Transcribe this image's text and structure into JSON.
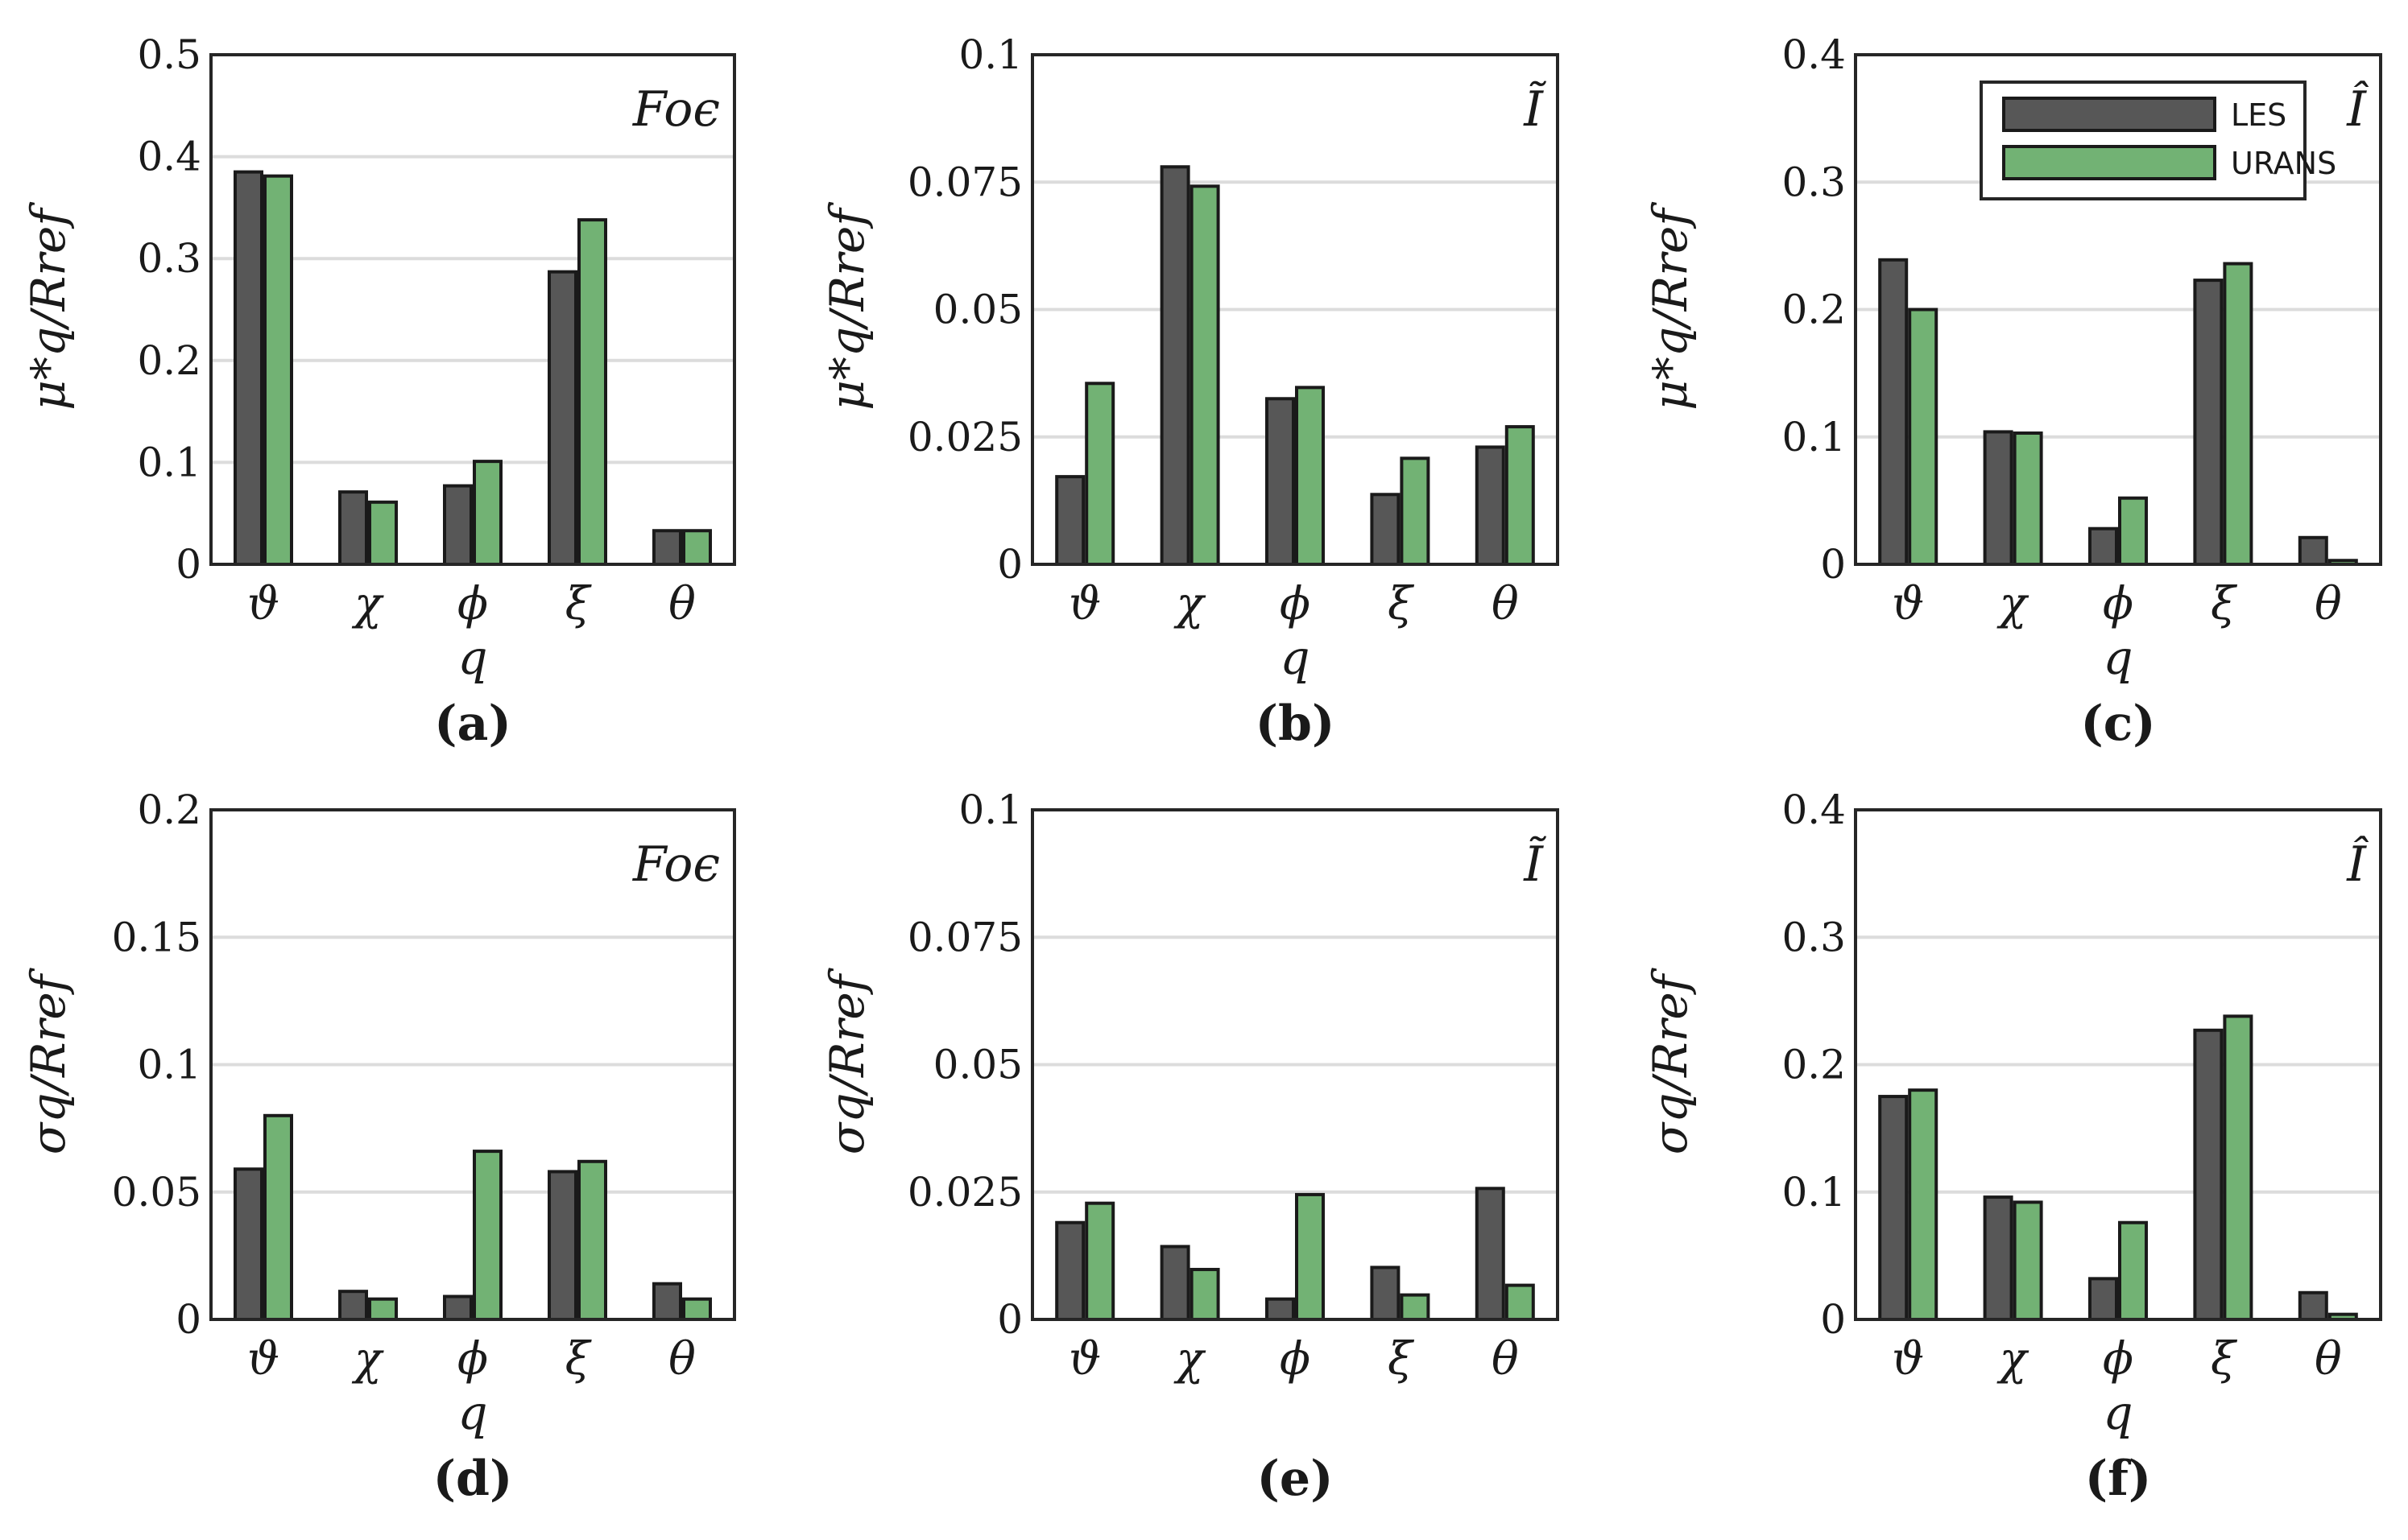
{
  "colors": {
    "LES": "#575757",
    "URANS": "#72b274"
  },
  "legend": {
    "entries": [
      "LES",
      "URANS"
    ]
  },
  "chart_data": [
    {
      "id": "a",
      "type": "bar",
      "panel_label": "(a)",
      "annotation": "Foϵ",
      "ylabel": "μ*q/Rref",
      "xlabel": "q",
      "categories": [
        "ϑ",
        "χ",
        "ϕ",
        "ξ",
        "θ"
      ],
      "ylim": [
        0,
        0.5
      ],
      "yticks": [
        0,
        0.1,
        0.2,
        0.3,
        0.4,
        0.5
      ],
      "ytick_labels": [
        "0",
        "0.1",
        "0.2",
        "0.3",
        "0.4",
        "0.5"
      ],
      "series": [
        {
          "name": "LES",
          "values": [
            0.385,
            0.071,
            0.077,
            0.287,
            0.033
          ]
        },
        {
          "name": "URANS",
          "values": [
            0.381,
            0.061,
            0.101,
            0.338,
            0.033
          ]
        }
      ]
    },
    {
      "id": "b",
      "type": "bar",
      "panel_label": "(b)",
      "annotation": "Ĩ",
      "ylabel": "μ*q/Rref",
      "xlabel": "q",
      "categories": [
        "ϑ",
        "χ",
        "ϕ",
        "ξ",
        "θ"
      ],
      "ylim": [
        0,
        0.1
      ],
      "yticks": [
        0,
        0.025,
        0.05,
        0.075,
        0.1
      ],
      "ytick_labels": [
        "0",
        "0.025",
        "0.05",
        "0.075",
        "0.1"
      ],
      "series": [
        {
          "name": "LES",
          "values": [
            0.0172,
            0.078,
            0.0325,
            0.0137,
            0.023
          ]
        },
        {
          "name": "URANS",
          "values": [
            0.0355,
            0.0742,
            0.0347,
            0.0208,
            0.027
          ]
        }
      ]
    },
    {
      "id": "c",
      "type": "bar",
      "panel_label": "(c)",
      "annotation": "Î",
      "ylabel": "μ*q/Rref",
      "xlabel": "q",
      "categories": [
        "ϑ",
        "χ",
        "ϕ",
        "ξ",
        "θ"
      ],
      "ylim": [
        0,
        0.4
      ],
      "yticks": [
        0,
        0.1,
        0.2,
        0.3,
        0.4
      ],
      "ytick_labels": [
        "0",
        "0.1",
        "0.2",
        "0.3",
        "0.4"
      ],
      "legend_loc": "top-right",
      "series": [
        {
          "name": "LES",
          "values": [
            0.239,
            0.104,
            0.028,
            0.223,
            0.021
          ]
        },
        {
          "name": "URANS",
          "values": [
            0.2,
            0.103,
            0.052,
            0.236,
            0.003
          ]
        }
      ]
    },
    {
      "id": "d",
      "type": "bar",
      "panel_label": "(d)",
      "annotation": "Foϵ",
      "ylabel": "σq/Rref",
      "xlabel": "q",
      "categories": [
        "ϑ",
        "χ",
        "ϕ",
        "ξ",
        "θ"
      ],
      "ylim": [
        0,
        0.2
      ],
      "yticks": [
        0,
        0.05,
        0.1,
        0.15,
        0.2
      ],
      "ytick_labels": [
        "0",
        "0.05",
        "0.1",
        "0.15",
        "0.2"
      ],
      "series": [
        {
          "name": "LES",
          "values": [
            0.059,
            0.011,
            0.009,
            0.058,
            0.014
          ]
        },
        {
          "name": "URANS",
          "values": [
            0.08,
            0.008,
            0.066,
            0.062,
            0.008
          ]
        }
      ]
    },
    {
      "id": "e",
      "type": "bar",
      "panel_label": "(e)",
      "annotation": "Ĩ",
      "ylabel": "σq/Rref",
      "xlabel": "",
      "categories": [
        "ϑ",
        "χ",
        "ϕ",
        "ξ",
        "θ"
      ],
      "ylim": [
        0,
        0.1
      ],
      "yticks": [
        0,
        0.025,
        0.05,
        0.075,
        0.1
      ],
      "ytick_labels": [
        "0",
        "0.025",
        "0.05",
        "0.075",
        "0.1"
      ],
      "series": [
        {
          "name": "LES",
          "values": [
            0.019,
            0.0143,
            0.004,
            0.0102,
            0.0257
          ]
        },
        {
          "name": "URANS",
          "values": [
            0.0228,
            0.0098,
            0.0245,
            0.0048,
            0.0067
          ]
        }
      ]
    },
    {
      "id": "f",
      "type": "bar",
      "panel_label": "(f)",
      "annotation": "Î",
      "ylabel": "σq/Rref",
      "xlabel": "q",
      "categories": [
        "ϑ",
        "χ",
        "ϕ",
        "ξ",
        "θ"
      ],
      "ylim": [
        0,
        0.4
      ],
      "yticks": [
        0,
        0.1,
        0.2,
        0.3,
        0.4
      ],
      "ytick_labels": [
        "0",
        "0.1",
        "0.2",
        "0.3",
        "0.4"
      ],
      "series": [
        {
          "name": "LES",
          "values": [
            0.175,
            0.096,
            0.032,
            0.227,
            0.021
          ]
        },
        {
          "name": "URANS",
          "values": [
            0.18,
            0.092,
            0.076,
            0.238,
            0.004
          ]
        }
      ]
    }
  ]
}
